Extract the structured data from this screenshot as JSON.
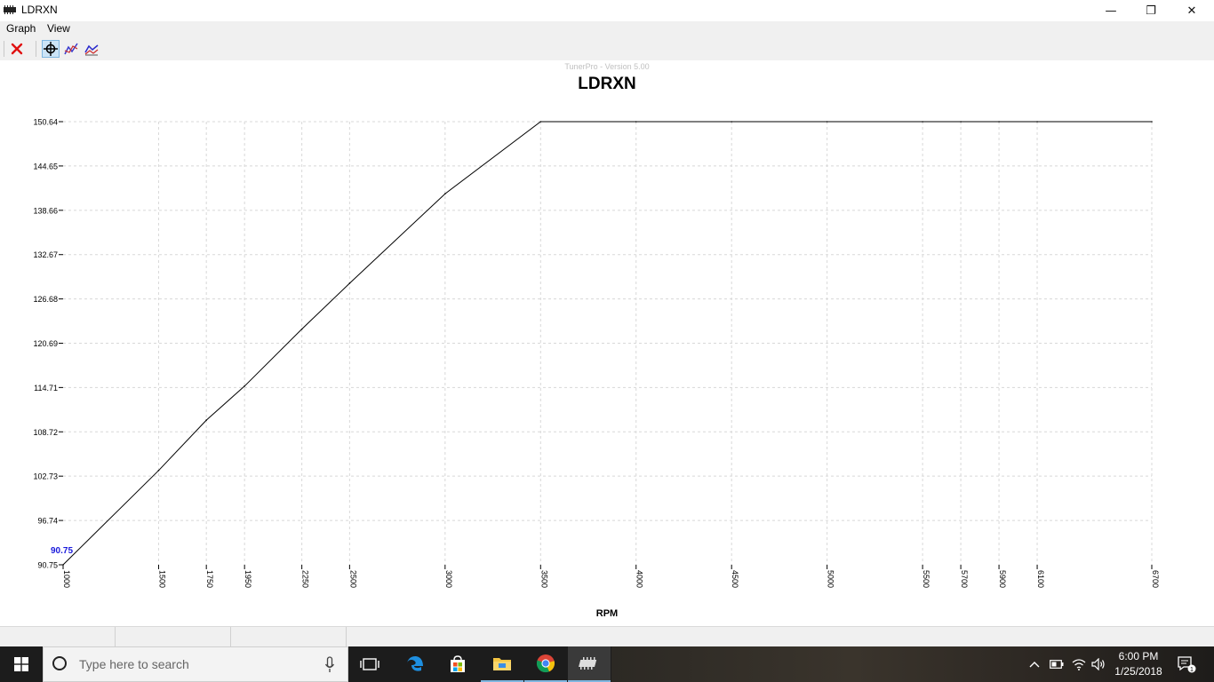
{
  "window": {
    "title": "LDRXN",
    "minimize_label": "—",
    "restore_label": "❐",
    "close_label": "✕"
  },
  "menu": {
    "items": [
      {
        "label": "Graph"
      },
      {
        "label": "View"
      }
    ]
  },
  "toolbar": {
    "icons": [
      "close-graph-icon",
      "crosshair-icon",
      "trace-line-icon",
      "compare-line-icon"
    ],
    "active": "crosshair-icon",
    "close_color": "#e01010"
  },
  "chart": {
    "version_text": "TunerPro - Version 5.00",
    "cursor_value": "90.75",
    "cursor_color": "#1a1adc"
  },
  "chart_data": {
    "type": "line",
    "title": "LDRXN",
    "xlabel": "RPM",
    "ylabel": "",
    "x": [
      1000,
      1500,
      1750,
      1950,
      2250,
      2500,
      3000,
      3500,
      4000,
      4500,
      5000,
      5500,
      5700,
      5900,
      6100,
      6700
    ],
    "xtick_labels": [
      "1000",
      "1500",
      "1750",
      "1950",
      "2250",
      "2500",
      "3000",
      "3500",
      "4000",
      "4500",
      "5000",
      "5500",
      "5700",
      "5900",
      "6100",
      "6700"
    ],
    "series": [
      {
        "values": [
          90.75,
          103.5,
          110.3,
          114.9,
          122.6,
          128.8,
          140.9,
          150.64,
          150.64,
          150.64,
          150.64,
          150.64,
          150.64,
          150.64,
          150.64,
          150.64
        ]
      }
    ],
    "yticks": [
      90.75,
      96.74,
      102.73,
      108.72,
      114.71,
      120.69,
      126.68,
      132.67,
      138.66,
      144.65,
      150.64
    ],
    "ytick_labels": [
      "90.75",
      "96.74",
      "102.73",
      "108.72",
      "114.71",
      "120.69",
      "126.68",
      "132.67",
      "138.66",
      "144.65",
      "150.64"
    ],
    "ylim": [
      90.75,
      150.64
    ],
    "grid": true,
    "line_color": "#000000"
  },
  "statusbar": {
    "panes": [
      "",
      "",
      ""
    ]
  },
  "taskbar": {
    "search_placeholder": "Type here to search",
    "apps": [
      "task-view-icon",
      "edge-icon",
      "store-icon",
      "file-explorer-icon",
      "chrome-icon",
      "tunerpro-icon"
    ],
    "clock_time": "6:00 PM",
    "clock_date": "1/25/2018",
    "notification_count": "1"
  }
}
